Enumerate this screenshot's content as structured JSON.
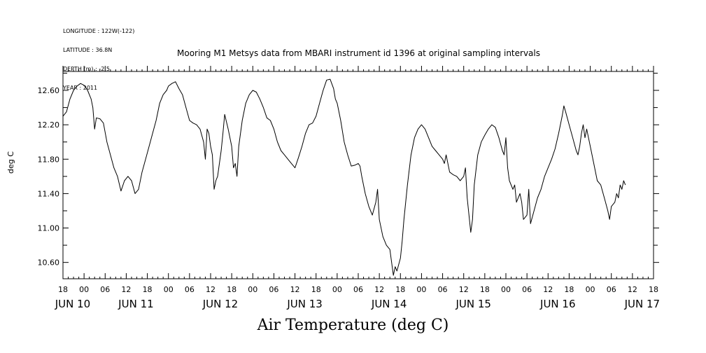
{
  "meta_lines": [
    "LONGITUDE : 122W(-122)",
    "LATITUDE : 36.8N",
    "DEPTH (m) : -2.5",
    "YEAR : 2011"
  ],
  "title": "Mooring M1 Metsys data from MBARI instrument id 1396 at original sampling intervals",
  "footer": "Air Temperature (deg C)",
  "ylabel": "deg C",
  "chart_data": {
    "type": "line",
    "title": "Mooring M1 Metsys data from MBARI instrument id 1396 at original sampling intervals",
    "ylabel": "deg C",
    "xlabel": "Air Temperature (deg C)",
    "x_unit": "hours since Jun 09 18:00 2011",
    "xlim": [
      0,
      168
    ],
    "ylim": [
      10.41,
      12.82
    ],
    "y_ticks": [
      10.6,
      11.0,
      11.4,
      11.8,
      12.2,
      12.6
    ],
    "y_tick_labels": [
      "10.60",
      "11.00",
      "11.40",
      "11.80",
      "12.20",
      "12.60"
    ],
    "x_hour_ticks": [
      0,
      6,
      12,
      18,
      24,
      30,
      36,
      42,
      48,
      54,
      60,
      66,
      72,
      78,
      84,
      90,
      96,
      102,
      108,
      114,
      120,
      126,
      132,
      138,
      144,
      150,
      156,
      162,
      168
    ],
    "x_hour_labels": [
      "18",
      "00",
      "06",
      "12",
      "18",
      "00",
      "06",
      "12",
      "18",
      "00",
      "06",
      "12",
      "18",
      "00",
      "06",
      "12",
      "18",
      "00",
      "06",
      "12",
      "18",
      "00",
      "06",
      "12",
      "18",
      "00",
      "06",
      "12",
      "18"
    ],
    "x_day_labels": [
      {
        "x": 0,
        "label": "JUN 10"
      },
      {
        "x": 18,
        "label": "JUN 11"
      },
      {
        "x": 42,
        "label": "JUN 12"
      },
      {
        "x": 66,
        "label": "JUN 13"
      },
      {
        "x": 90,
        "label": "JUN 14"
      },
      {
        "x": 114,
        "label": "JUN 15"
      },
      {
        "x": 138,
        "label": "JUN 16"
      },
      {
        "x": 162,
        "label": "JUN 17"
      }
    ],
    "grid": false,
    "series": [
      {
        "color": "#000000",
        "points": [
          [
            0,
            12.3
          ],
          [
            1,
            12.35
          ],
          [
            2,
            12.5
          ],
          [
            3,
            12.6
          ],
          [
            4,
            12.65
          ],
          [
            5,
            12.68
          ],
          [
            6,
            12.66
          ],
          [
            7,
            12.6
          ],
          [
            8,
            12.5
          ],
          [
            8.5,
            12.4
          ],
          [
            9,
            12.15
          ],
          [
            9.5,
            12.28
          ],
          [
            10.5,
            12.27
          ],
          [
            11.5,
            12.22
          ],
          [
            12.5,
            12.0
          ],
          [
            13.5,
            11.85
          ],
          [
            14.5,
            11.7
          ],
          [
            15.5,
            11.6
          ],
          [
            16.5,
            11.43
          ],
          [
            17.5,
            11.55
          ],
          [
            18.5,
            11.6
          ],
          [
            19.5,
            11.55
          ],
          [
            20.5,
            11.4
          ],
          [
            21.5,
            11.45
          ],
          [
            22.5,
            11.65
          ],
          [
            23.5,
            11.8
          ],
          [
            24.5,
            11.95
          ],
          [
            25.5,
            12.1
          ],
          [
            26.5,
            12.25
          ],
          [
            27.5,
            12.45
          ],
          [
            28.5,
            12.55
          ],
          [
            29.5,
            12.6
          ],
          [
            30,
            12.65
          ],
          [
            31,
            12.68
          ],
          [
            32,
            12.7
          ],
          [
            33,
            12.62
          ],
          [
            34,
            12.55
          ],
          [
            35,
            12.4
          ],
          [
            36,
            12.25
          ],
          [
            37,
            12.22
          ],
          [
            38,
            12.2
          ],
          [
            39,
            12.15
          ],
          [
            40,
            12.0
          ],
          [
            40.5,
            11.8
          ],
          [
            41,
            12.15
          ],
          [
            41.5,
            12.1
          ],
          [
            42,
            11.95
          ],
          [
            42.5,
            11.85
          ],
          [
            43,
            11.45
          ],
          [
            43.5,
            11.55
          ],
          [
            44,
            11.6
          ],
          [
            45,
            11.9
          ],
          [
            45.5,
            12.1
          ],
          [
            46,
            12.32
          ],
          [
            47,
            12.15
          ],
          [
            48,
            11.95
          ],
          [
            48.5,
            11.7
          ],
          [
            49,
            11.75
          ],
          [
            49.5,
            11.6
          ],
          [
            50,
            11.95
          ],
          [
            51,
            12.25
          ],
          [
            52,
            12.45
          ],
          [
            53,
            12.55
          ],
          [
            54,
            12.6
          ],
          [
            55,
            12.58
          ],
          [
            56,
            12.5
          ],
          [
            57,
            12.4
          ],
          [
            58,
            12.28
          ],
          [
            59,
            12.25
          ],
          [
            60,
            12.15
          ],
          [
            61,
            12.0
          ],
          [
            62,
            11.9
          ],
          [
            63,
            11.85
          ],
          [
            64,
            11.8
          ],
          [
            65,
            11.75
          ],
          [
            66,
            11.7
          ],
          [
            67,
            11.82
          ],
          [
            68,
            11.95
          ],
          [
            69,
            12.1
          ],
          [
            70,
            12.2
          ],
          [
            71,
            12.22
          ],
          [
            72,
            12.3
          ],
          [
            73,
            12.45
          ],
          [
            74,
            12.6
          ],
          [
            75,
            12.72
          ],
          [
            76,
            12.73
          ],
          [
            77,
            12.62
          ],
          [
            77.5,
            12.5
          ],
          [
            78,
            12.45
          ],
          [
            79,
            12.25
          ],
          [
            80,
            12.0
          ],
          [
            81,
            11.85
          ],
          [
            82,
            11.72
          ],
          [
            83,
            11.73
          ],
          [
            84,
            11.75
          ],
          [
            84.5,
            11.72
          ],
          [
            85,
            11.6
          ],
          [
            86,
            11.4
          ],
          [
            87,
            11.25
          ],
          [
            88,
            11.15
          ],
          [
            89,
            11.3
          ],
          [
            89.5,
            11.45
          ],
          [
            90,
            11.1
          ],
          [
            91,
            10.9
          ],
          [
            92,
            10.8
          ],
          [
            93,
            10.75
          ],
          [
            93.5,
            10.6
          ],
          [
            94,
            10.45
          ],
          [
            94.5,
            10.55
          ],
          [
            95,
            10.5
          ],
          [
            96,
            10.65
          ],
          [
            96.5,
            10.85
          ],
          [
            97,
            11.1
          ],
          [
            98,
            11.5
          ],
          [
            99,
            11.85
          ],
          [
            100,
            12.05
          ],
          [
            101,
            12.15
          ],
          [
            102,
            12.2
          ],
          [
            103,
            12.15
          ],
          [
            104,
            12.05
          ],
          [
            105,
            11.95
          ],
          [
            106,
            11.9
          ],
          [
            107,
            11.85
          ],
          [
            108,
            11.8
          ],
          [
            108.5,
            11.75
          ],
          [
            109,
            11.85
          ],
          [
            110,
            11.65
          ],
          [
            111,
            11.62
          ],
          [
            112,
            11.6
          ],
          [
            113,
            11.55
          ],
          [
            114,
            11.6
          ],
          [
            114.5,
            11.7
          ],
          [
            115,
            11.35
          ],
          [
            116,
            10.95
          ],
          [
            116.5,
            11.1
          ],
          [
            117,
            11.5
          ],
          [
            118,
            11.85
          ],
          [
            119,
            12.0
          ],
          [
            120,
            12.08
          ],
          [
            121,
            12.15
          ],
          [
            122,
            12.2
          ],
          [
            123,
            12.17
          ],
          [
            124,
            12.05
          ],
          [
            125,
            11.9
          ],
          [
            125.5,
            11.85
          ],
          [
            126,
            12.05
          ],
          [
            126.5,
            11.7
          ],
          [
            127,
            11.55
          ],
          [
            128,
            11.45
          ],
          [
            128.5,
            11.5
          ],
          [
            129,
            11.3
          ],
          [
            130,
            11.4
          ],
          [
            130.5,
            11.3
          ],
          [
            131,
            11.1
          ],
          [
            132,
            11.15
          ],
          [
            132.5,
            11.45
          ],
          [
            133,
            11.05
          ],
          [
            134,
            11.2
          ],
          [
            135,
            11.35
          ],
          [
            136,
            11.45
          ],
          [
            137,
            11.6
          ],
          [
            138,
            11.7
          ],
          [
            139,
            11.8
          ],
          [
            140,
            11.92
          ],
          [
            141,
            12.1
          ],
          [
            142,
            12.3
          ],
          [
            142.5,
            12.42
          ],
          [
            143,
            12.35
          ],
          [
            144,
            12.2
          ],
          [
            145,
            12.05
          ],
          [
            146,
            11.9
          ],
          [
            146.5,
            11.85
          ],
          [
            147,
            11.95
          ],
          [
            147.5,
            12.1
          ],
          [
            148,
            12.2
          ],
          [
            148.5,
            12.05
          ],
          [
            149,
            12.15
          ],
          [
            150,
            11.95
          ],
          [
            151,
            11.75
          ],
          [
            152,
            11.55
          ],
          [
            153,
            11.5
          ],
          [
            154,
            11.35
          ],
          [
            155,
            11.2
          ],
          [
            155.5,
            11.1
          ],
          [
            156,
            11.25
          ],
          [
            157,
            11.3
          ],
          [
            157.5,
            11.4
          ],
          [
            158,
            11.35
          ],
          [
            158.5,
            11.5
          ],
          [
            159,
            11.45
          ],
          [
            159.5,
            11.55
          ],
          [
            160,
            11.5
          ]
        ]
      }
    ]
  }
}
